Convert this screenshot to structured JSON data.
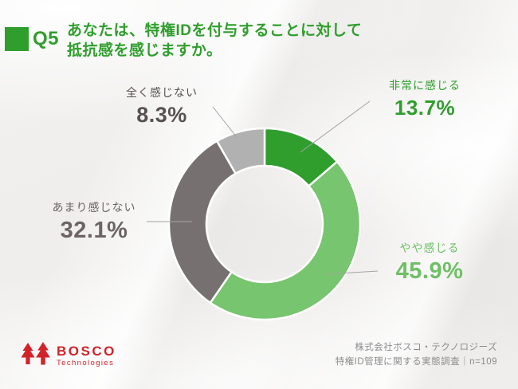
{
  "header": {
    "q_label": "Q5",
    "title_line1": "あなたは、特権IDを付与することに対して",
    "title_line2": "抵抗感を感じますか。"
  },
  "chart_data": {
    "type": "pie",
    "subtype": "donut",
    "title": "あなたは、特権IDを付与することに対して抵抗感を感じますか。",
    "unit": "%",
    "start_angle_deg": 0,
    "direction": "clockwise",
    "hole_ratio": 0.6,
    "legend_position": "callout-labels",
    "segments": [
      {
        "label": "非常に感じる",
        "value": 13.7,
        "display": "13.7%",
        "color": "#2f9e2d",
        "label_color": "#2f9e2d"
      },
      {
        "label": "やや感じる",
        "value": 45.9,
        "display": "45.9%",
        "color": "#77c56e",
        "label_color": "#6fbf66"
      },
      {
        "label": "あまり感じない",
        "value": 32.1,
        "display": "32.1%",
        "color": "#767070",
        "label_color": "#6b6462"
      },
      {
        "label": "全く感じない",
        "value": 8.3,
        "display": "8.3%",
        "color": "#b1b1b1",
        "label_color": "#575150"
      }
    ]
  },
  "footer": {
    "logo_text": "BOSCO",
    "logo_subtext": "Technologies",
    "credit_line1": "株式会社ボスコ・テクノロジーズ",
    "credit_line2": "特権ID管理に関する実態調査｜n=109"
  }
}
